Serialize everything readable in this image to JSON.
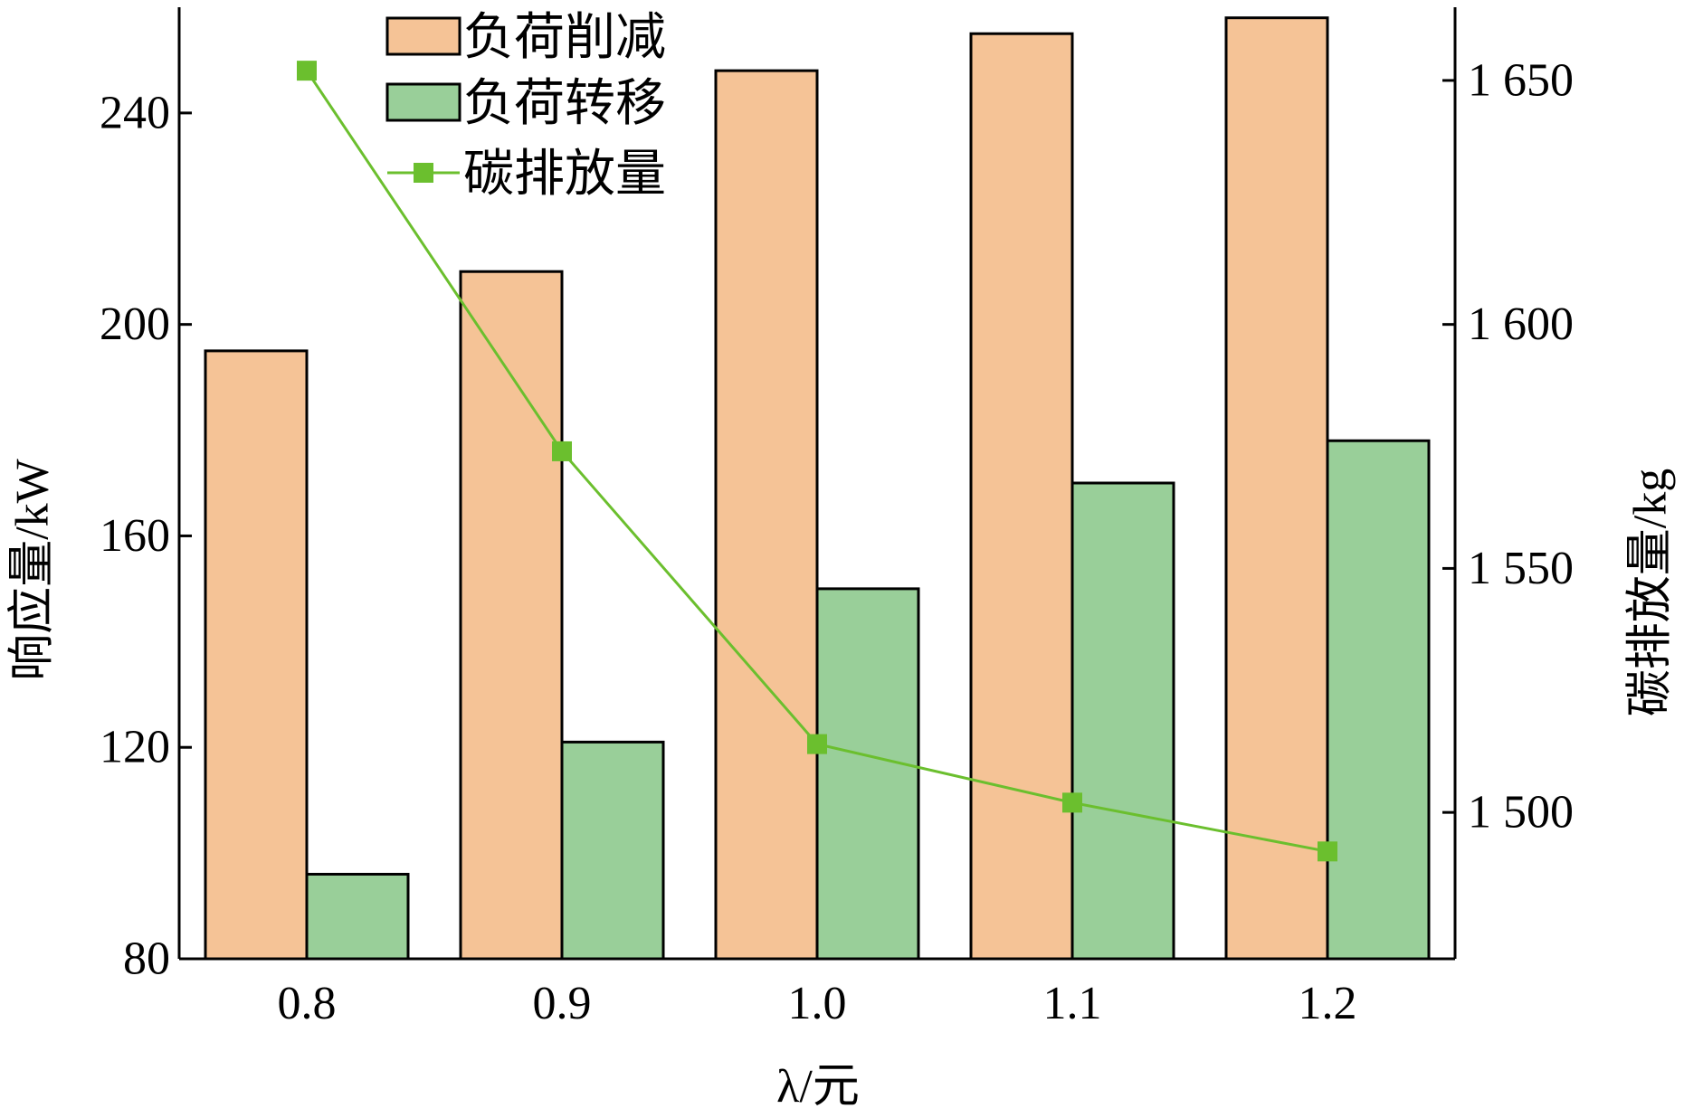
{
  "chart_data": {
    "type": "bar",
    "categories": [
      "0.8",
      "0.9",
      "1.0",
      "1.1",
      "1.2"
    ],
    "series": [
      {
        "name": "负荷削减",
        "kind": "bar",
        "axis": "left",
        "color": "#F5C396",
        "values": [
          195,
          210,
          248,
          255,
          258
        ]
      },
      {
        "name": "负荷转移",
        "kind": "bar",
        "axis": "left",
        "color": "#99CF99",
        "values": [
          96,
          121,
          150,
          170,
          178
        ]
      },
      {
        "name": "碳排放量",
        "kind": "line",
        "axis": "right",
        "color": "#6BBF2E",
        "values": [
          1652,
          1574,
          1514,
          1502,
          1492
        ]
      }
    ],
    "xlabel": "λ/元",
    "ylabel": "响应量/kW",
    "y2label": "碳排放量/kg",
    "ylim": [
      80,
      260
    ],
    "yticks": [
      80,
      120,
      160,
      200,
      240
    ],
    "ytick_labels": [
      "80",
      "120",
      "160",
      "200",
      "240"
    ],
    "y2lim": [
      1470,
      1665
    ],
    "y2ticks": [
      1500,
      1550,
      1600,
      1650
    ],
    "y2tick_labels": [
      "1 500",
      "1 550",
      "1 600",
      "1 650"
    ],
    "grid": false,
    "legend_position": "top-left"
  }
}
